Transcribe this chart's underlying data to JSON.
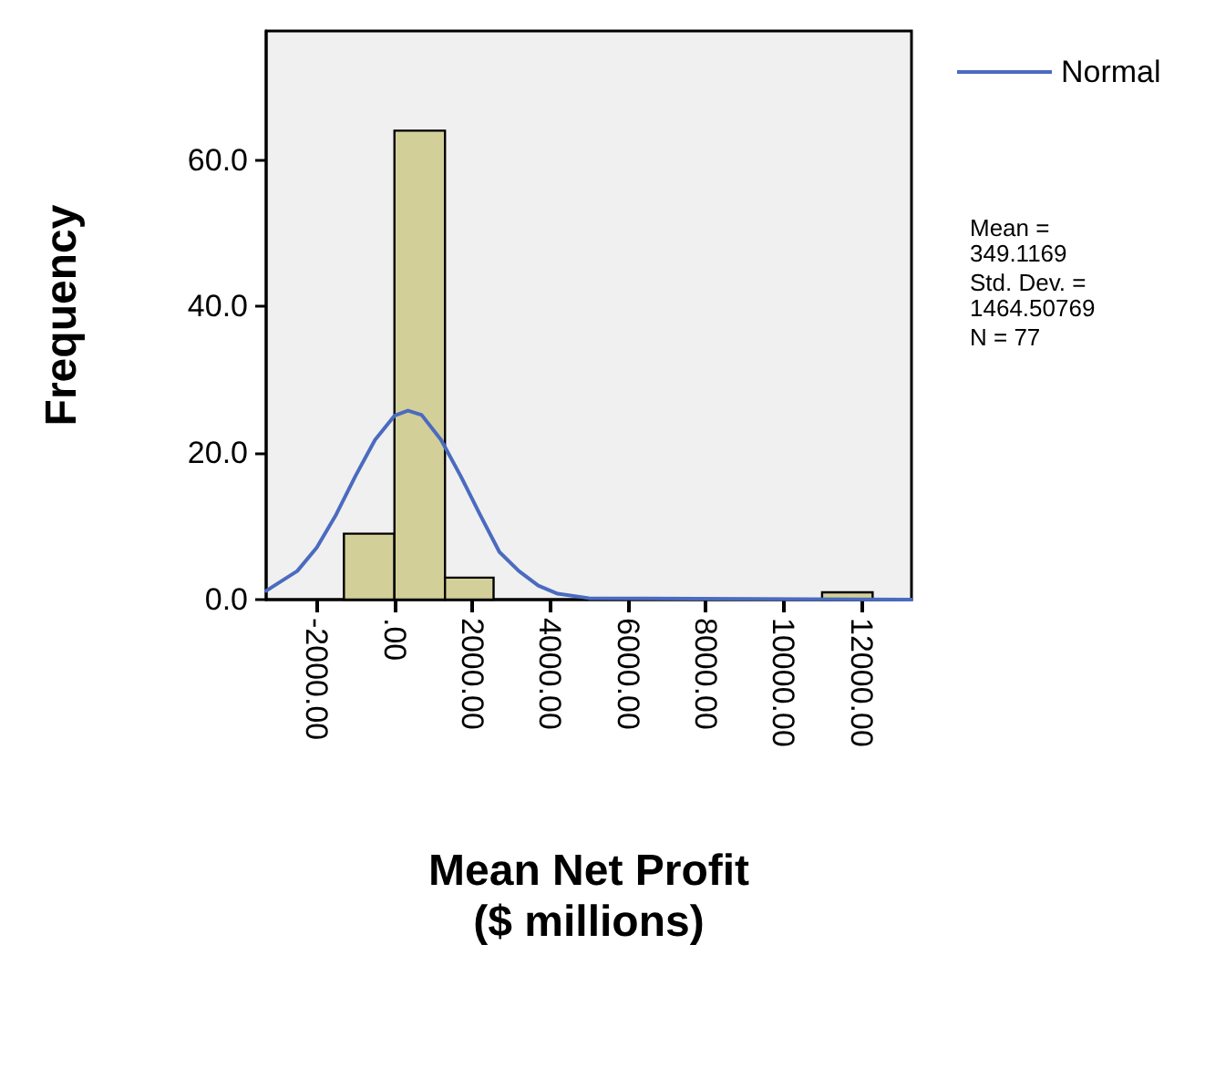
{
  "chart_data": {
    "type": "histogram",
    "xlabel": "Mean Net Profit\n($ millions)",
    "ylabel": "Frequency",
    "bins": [
      -1300,
      0,
      1300,
      2550,
      11000,
      12300
    ],
    "values": [
      9,
      64,
      3,
      0,
      1
    ],
    "color": "#d3cf98",
    "series": [
      {
        "name": "Normal",
        "type": "line",
        "color": "#4a6bbf",
        "x": [
          -3300,
          -2500,
          -2000,
          -1500,
          -1000,
          -500,
          0,
          349,
          700,
          1200,
          1700,
          2200,
          2700,
          3200,
          3700,
          4200,
          5000,
          13300
        ],
        "values": [
          1.2,
          3.9,
          7.1,
          11.6,
          16.9,
          21.8,
          25.1,
          25.8,
          25.2,
          21.8,
          16.9,
          11.6,
          6.5,
          3.9,
          1.9,
          0.8,
          0.2,
          0
        ]
      }
    ],
    "xlim": [
      -3300,
      13300
    ],
    "xticks": [
      {
        "value": -2000,
        "label": "-2000.00"
      },
      {
        "value": 0,
        "label": ".00"
      },
      {
        "value": 2000,
        "label": "2000.00"
      },
      {
        "value": 4000,
        "label": "4000.00"
      },
      {
        "value": 6000,
        "label": "6000.00"
      },
      {
        "value": 8000,
        "label": "8000.00"
      },
      {
        "value": 10000,
        "label": "10000.00"
      },
      {
        "value": 12000,
        "label": "12000.00"
      }
    ],
    "ylim": [
      0,
      77.6
    ],
    "yticks": [
      {
        "value": 0,
        "label": "0.0"
      },
      {
        "value": 20,
        "label": "20.0"
      },
      {
        "value": 40,
        "label": "40.0"
      },
      {
        "value": 60,
        "label": "60.0"
      }
    ],
    "legend": "top right",
    "grid": false,
    "annotations": [
      "Mean = 349.1169",
      "Std. Dev. = 1464.50769",
      "N = 77"
    ]
  }
}
